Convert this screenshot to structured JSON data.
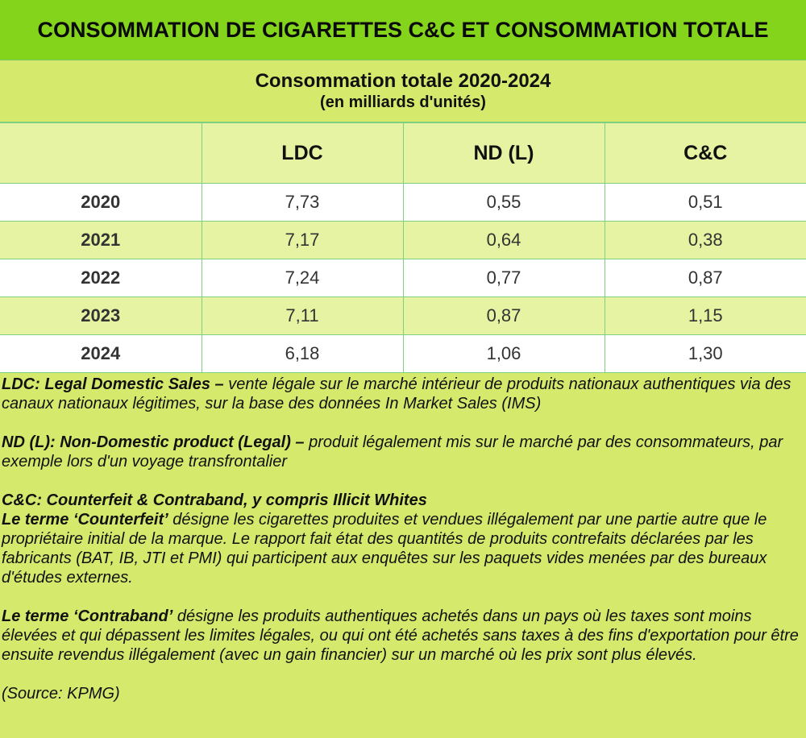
{
  "title": "CONSOMMATION DE CIGARETTES C&C ET CONSOMMATION TOTALE",
  "subtitle": "Consommation totale 2020-2024",
  "unit": "(en milliards d'unités)",
  "colors": {
    "title_bg": "#84d41c",
    "panel_bg": "#d5ea6c",
    "alt_row": "#e6f3a2",
    "grid": "#7fcf7f"
  },
  "table": {
    "headers": [
      "",
      "LDC",
      "ND (L)",
      "C&C"
    ],
    "rows": [
      [
        "2020",
        "7,73",
        "0,55",
        "0,51"
      ],
      [
        "2021",
        "7,17",
        "0,64",
        "0,38"
      ],
      [
        "2022",
        "7,24",
        "0,77",
        "0,87"
      ],
      [
        "2023",
        "7,11",
        "0,87",
        "1,15"
      ],
      [
        "2024",
        "6,18",
        "1,06",
        "1,30"
      ]
    ]
  },
  "notes": {
    "ldc_term": "LDC: Legal Domestic Sales –",
    "ldc_text": " vente légale sur le marché intérieur de produits nationaux authentiques via des canaux nationaux légitimes, sur la base des données In Market Sales (IMS)",
    "nd_term": "ND (L): Non-Domestic product (Legal) –",
    "nd_text": " produit légalement mis sur le marché par des consommateurs, par exemple lors d'un voyage transfrontalier",
    "cc_term": "C&C: Counterfeit & Contraband, y compris Illicit Whites",
    "counterfeit_term": "Le terme ‘Counterfeit’",
    "counterfeit_text": " désigne les cigarettes produites et vendues illégalement par une partie autre que le propriétaire initial de la marque. Le rapport fait état des quantités de produits contrefaits déclarées par les fabricants (BAT, IB, JTI et PMI) qui participent aux enquêtes sur les paquets vides menées par des bureaux d'études externes.",
    "contraband_term": "Le terme ‘Contraband’",
    "contraband_text": " désigne les produits authentiques achetés dans un pays où les taxes sont moins élevées et qui dépassent les limites légales, ou qui ont été achetés sans taxes à des fins d'exportation pour être ensuite revendus illégalement (avec un gain financier) sur un marché où les prix sont plus élevés.",
    "source": "(Source: KPMG)"
  }
}
